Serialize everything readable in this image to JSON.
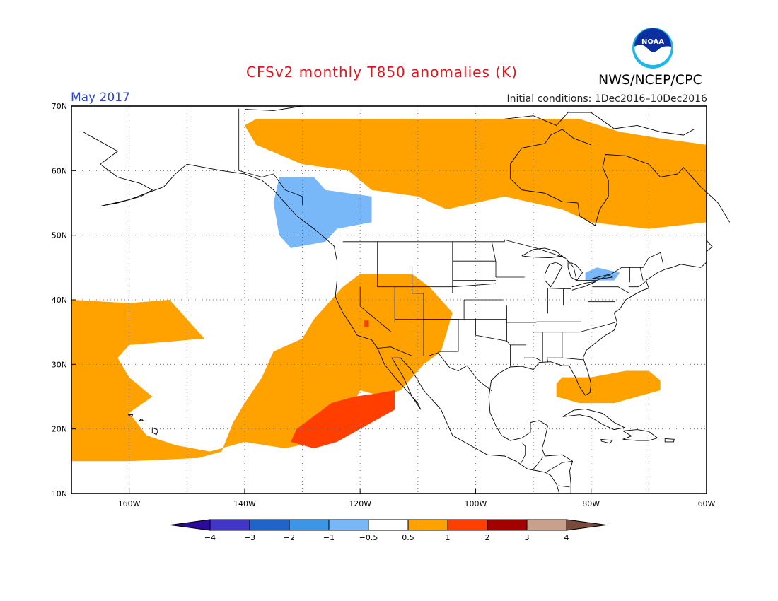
{
  "header": {
    "title": "CFSv2 monthly T850 anomalies (K)",
    "agency": "NWS/NCEP/CPC",
    "logo_text": "NOAA",
    "valid_month": "May 2017",
    "initial_conditions": "Initial conditions: 1Dec2016–10Dec2016"
  },
  "map": {
    "lon_range": [
      -170,
      -60
    ],
    "lat_range": [
      10,
      70
    ],
    "lat_labels": [
      "70N",
      "60N",
      "50N",
      "40N",
      "30N",
      "20N",
      "10N"
    ],
    "lon_labels": [
      "160W",
      "140W",
      "120W",
      "100W",
      "80W",
      "60W"
    ],
    "anomaly_regions": [
      {
        "id": "hudson-bay-warm",
        "level": "0.5-1",
        "color": "#ffa200",
        "polygon": [
          [
            -140,
            67
          ],
          [
            -138,
            64
          ],
          [
            -130,
            61
          ],
          [
            -122,
            60
          ],
          [
            -118,
            57
          ],
          [
            -110,
            56
          ],
          [
            -105,
            54
          ],
          [
            -95,
            56
          ],
          [
            -85,
            54
          ],
          [
            -80,
            52
          ],
          [
            -70,
            51
          ],
          [
            -60,
            52
          ],
          [
            -60,
            64
          ],
          [
            -68,
            65
          ],
          [
            -75,
            66
          ],
          [
            -82,
            68
          ],
          [
            -100,
            68
          ],
          [
            -120,
            68
          ],
          [
            -138,
            68
          ]
        ]
      },
      {
        "id": "bc-cool",
        "level": "-1--0.5",
        "color": "#78b8f8",
        "polygon": [
          [
            -134,
            59
          ],
          [
            -128,
            59
          ],
          [
            -126,
            57
          ],
          [
            -118,
            56
          ],
          [
            -118,
            52
          ],
          [
            -124,
            51
          ],
          [
            -126,
            49
          ],
          [
            -132,
            48
          ],
          [
            -134,
            50
          ],
          [
            -135,
            55
          ]
        ]
      },
      {
        "id": "lake-ontario-cool",
        "level": "-1--0.5",
        "color": "#78b8f8",
        "polygon": [
          [
            -81,
            43
          ],
          [
            -76,
            43
          ],
          [
            -75,
            44.2
          ],
          [
            -79,
            45
          ],
          [
            -81,
            44.2
          ]
        ]
      },
      {
        "id": "pacific-warm",
        "level": "0.5-1",
        "color": "#ffa200",
        "polygon": [
          [
            -170,
            40
          ],
          [
            -160,
            39.5
          ],
          [
            -153,
            40
          ],
          [
            -150,
            37
          ],
          [
            -147,
            34
          ],
          [
            -160,
            33
          ],
          [
            -162,
            31
          ],
          [
            -160,
            28
          ],
          [
            -156,
            25
          ],
          [
            -160,
            22.5
          ],
          [
            -157,
            19
          ],
          [
            -152,
            17.5
          ],
          [
            -146,
            16.5
          ],
          [
            -140,
            18
          ],
          [
            -133,
            17
          ],
          [
            -128,
            18
          ],
          [
            -125,
            21
          ],
          [
            -123,
            21
          ],
          [
            -120,
            26
          ],
          [
            -116,
            25
          ],
          [
            -113,
            26
          ],
          [
            -109,
            30
          ],
          [
            -106,
            32
          ],
          [
            -104,
            38
          ],
          [
            -108,
            42
          ],
          [
            -111,
            44
          ],
          [
            -115,
            44
          ],
          [
            -120,
            44
          ],
          [
            -123,
            42
          ],
          [
            -125,
            40
          ],
          [
            -128,
            37
          ],
          [
            -130,
            34
          ],
          [
            -135,
            32
          ],
          [
            -137,
            28
          ],
          [
            -140,
            24
          ],
          [
            -142,
            21
          ],
          [
            -144,
            16.5
          ],
          [
            -148,
            15.5
          ],
          [
            -160,
            15
          ],
          [
            -170,
            15
          ]
        ]
      },
      {
        "id": "tropical-east-pacific-warm",
        "level": "1-2",
        "color": "#ff3e00",
        "polygon": [
          [
            -132,
            18
          ],
          [
            -128,
            17
          ],
          [
            -124,
            18
          ],
          [
            -118,
            21
          ],
          [
            -114,
            23
          ],
          [
            -114,
            26
          ],
          [
            -117,
            25.5
          ],
          [
            -121,
            25
          ],
          [
            -125,
            24
          ],
          [
            -128,
            22
          ],
          [
            -131,
            20
          ]
        ]
      },
      {
        "id": "california-warm-dot",
        "level": "1-2",
        "color": "#ff3e00",
        "polygon": [
          [
            -119.3,
            35.8
          ],
          [
            -118.5,
            35.8
          ],
          [
            -118.5,
            36.8
          ],
          [
            -119.3,
            36.8
          ]
        ]
      },
      {
        "id": "florida-warm",
        "level": "0.5-1",
        "color": "#ffa200",
        "polygon": [
          [
            -85,
            28
          ],
          [
            -80,
            28
          ],
          [
            -74,
            29
          ],
          [
            -70,
            29
          ],
          [
            -68,
            27.5
          ],
          [
            -68,
            26
          ],
          [
            -72,
            25
          ],
          [
            -76,
            24
          ],
          [
            -82,
            24
          ],
          [
            -86,
            25
          ],
          [
            -86,
            27
          ]
        ]
      }
    ],
    "colorbar": {
      "tick_labels": [
        "−4",
        "−3",
        "−2",
        "−1",
        "−0.5",
        "0.5",
        "1",
        "2",
        "3",
        "4"
      ],
      "colors": [
        "#2b0a9e",
        "#4236c8",
        "#1f64c8",
        "#3c96e8",
        "#78b8f8",
        "#ffffff",
        "#ffa200",
        "#ff3e00",
        "#a30000",
        "#c8a08c",
        "#7a4a3c"
      ]
    }
  }
}
